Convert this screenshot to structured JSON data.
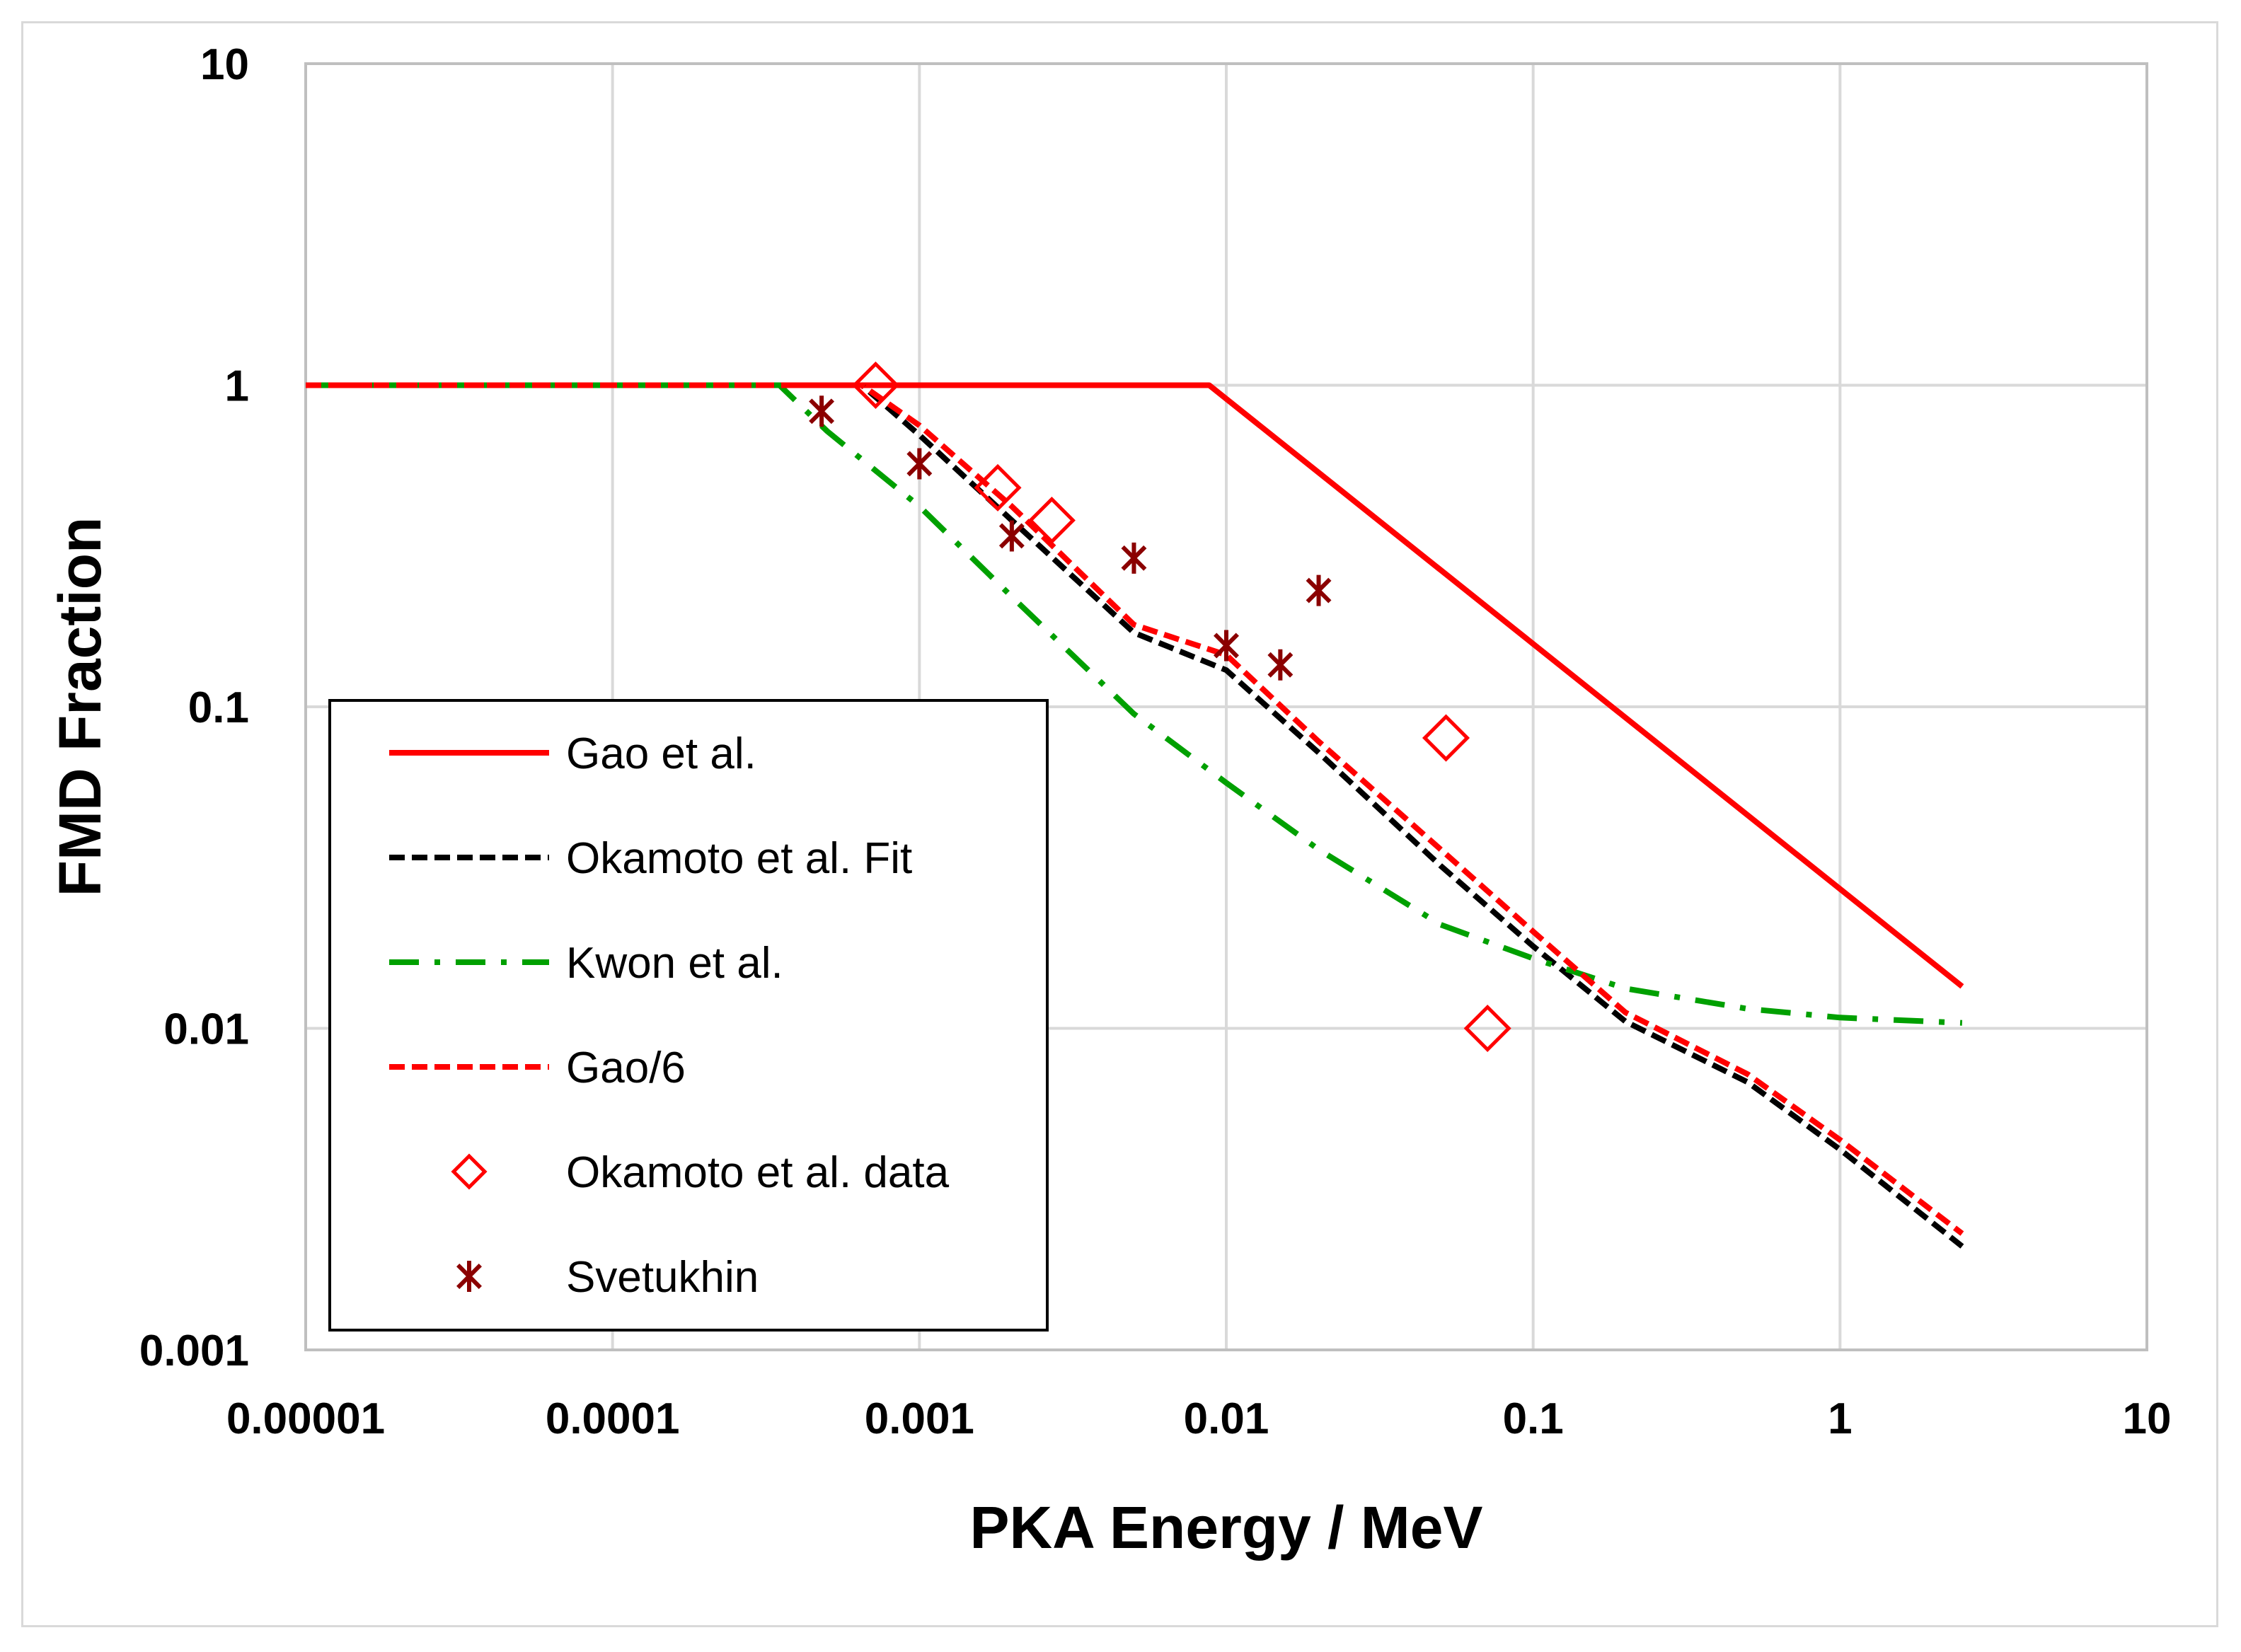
{
  "chart_data": {
    "type": "line",
    "xlabel": "PKA Energy / MeV",
    "ylabel": "FMD Fraction",
    "xscale": "log",
    "yscale": "log",
    "xlim": [
      1e-05,
      10
    ],
    "ylim": [
      0.001,
      10
    ],
    "grid": true,
    "legend_position": "lower-left",
    "x_ticks": [
      "0.00001",
      "0.0001",
      "0.001",
      "0.01",
      "0.1",
      "1",
      "10"
    ],
    "y_ticks": [
      "0.001",
      "0.01",
      "0.1",
      "1",
      "10"
    ],
    "series": [
      {
        "name": "Gao et al.",
        "kind": "line",
        "style": "solid",
        "color": "#ff0000",
        "x": [
          1e-05,
          0.0088,
          2.5
        ],
        "y": [
          1,
          1,
          0.0135
        ]
      },
      {
        "name": "Okamoto et al. Fit",
        "kind": "line",
        "style": "dashed",
        "color": "#000000",
        "x": [
          1e-05,
          0.00065,
          0.001,
          0.002,
          0.005,
          0.01,
          0.02,
          0.05,
          0.1,
          0.2,
          0.5,
          1,
          2.5
        ],
        "y": [
          1,
          1,
          0.7,
          0.38,
          0.17,
          0.13,
          0.072,
          0.032,
          0.018,
          0.0105,
          0.0068,
          0.0042,
          0.0021
        ]
      },
      {
        "name": "Kwon et al.",
        "kind": "line",
        "style": "dash-dot",
        "color": "#00a000",
        "x": [
          1e-05,
          0.00035,
          0.0005,
          0.001,
          0.002,
          0.005,
          0.01,
          0.02,
          0.05,
          0.1,
          0.2,
          0.5,
          1,
          2.5
        ],
        "y": [
          1,
          1,
          0.72,
          0.42,
          0.22,
          0.095,
          0.058,
          0.036,
          0.021,
          0.0165,
          0.0133,
          0.0115,
          0.0108,
          0.0104
        ]
      },
      {
        "name": "Gao/6",
        "kind": "line",
        "style": "dashed",
        "color": "#ff0000",
        "x": [
          1e-05,
          0.00065,
          0.001,
          0.002,
          0.005,
          0.01,
          0.02,
          0.05,
          0.1,
          0.2,
          0.5,
          1,
          2.5
        ],
        "y": [
          1,
          1,
          0.75,
          0.42,
          0.18,
          0.145,
          0.078,
          0.036,
          0.02,
          0.0112,
          0.0072,
          0.0045,
          0.0023
        ]
      },
      {
        "name": "Okamoto et al. data",
        "kind": "scatter",
        "marker": "diamond",
        "color": "#ff0000",
        "x": [
          0.00072,
          0.0018,
          0.0027,
          0.052,
          0.071
        ],
        "y": [
          1,
          0.48,
          0.38,
          0.08,
          0.01
        ]
      },
      {
        "name": "Svetukhin",
        "kind": "scatter",
        "marker": "star",
        "color": "#8b0000",
        "x": [
          0.00048,
          0.001,
          0.002,
          0.005,
          0.01,
          0.015,
          0.02
        ],
        "y": [
          0.83,
          0.57,
          0.34,
          0.29,
          0.155,
          0.135,
          0.23
        ]
      }
    ]
  }
}
